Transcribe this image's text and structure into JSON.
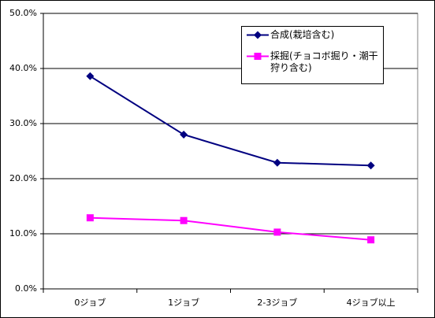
{
  "chart_data": {
    "type": "line",
    "categories": [
      "0ジョブ",
      "1ジョブ",
      "2-3ジョブ",
      "4ジョブ以上"
    ],
    "series": [
      {
        "name": "合成(栽培含む)",
        "color": "#000080",
        "marker": "diamond",
        "values": [
          38.6,
          28.0,
          22.9,
          22.4
        ]
      },
      {
        "name": "採掘(チョコボ掘り・潮干狩り含む)",
        "color": "#ff00ff",
        "marker": "square",
        "values": [
          12.9,
          12.4,
          10.3,
          8.9
        ]
      }
    ],
    "ylim": [
      0,
      50
    ],
    "yticks": [
      {
        "value": 0,
        "label": "0.0%"
      },
      {
        "value": 10,
        "label": "10.0%"
      },
      {
        "value": 20,
        "label": "20.0%"
      },
      {
        "value": 30,
        "label": "30.0%"
      },
      {
        "value": 40,
        "label": "40.0%"
      },
      {
        "value": 50,
        "label": "50.0%"
      }
    ],
    "grid": true,
    "legend": "upper-right"
  }
}
